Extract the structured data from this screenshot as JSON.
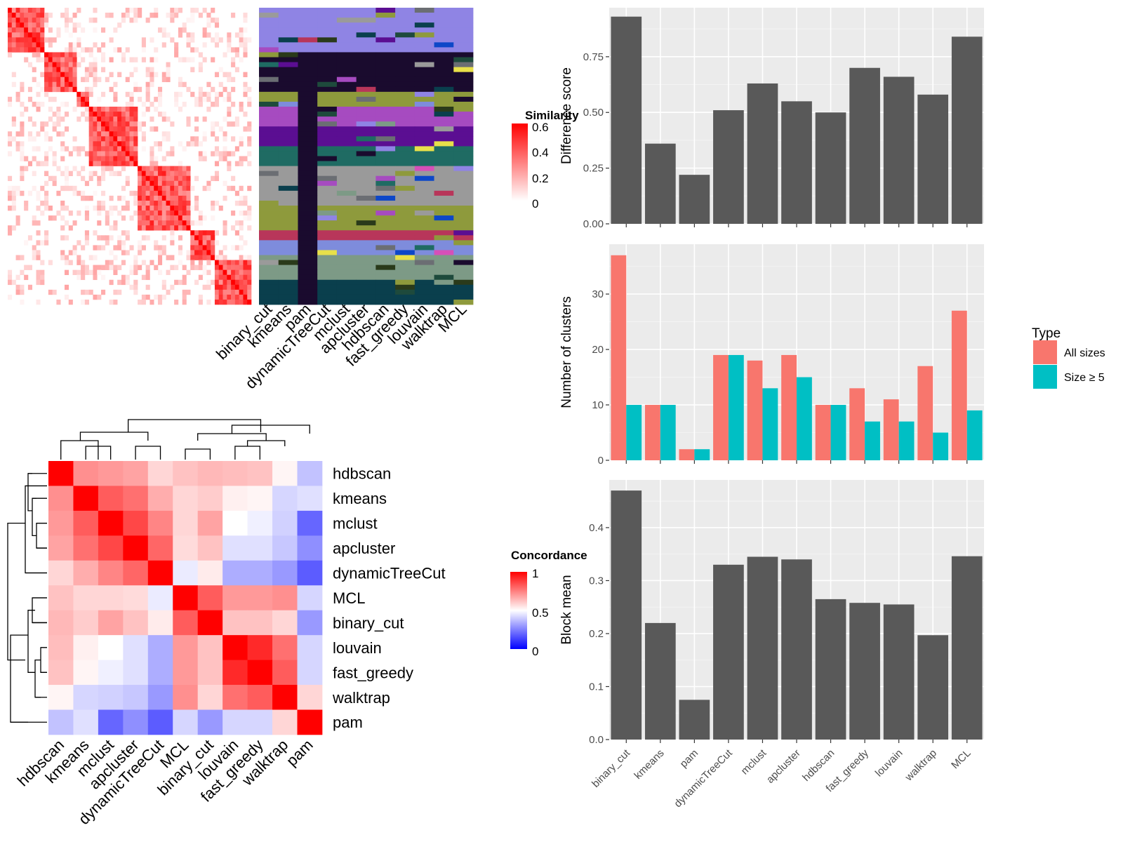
{
  "chart_data": [
    {
      "type": "heatmap",
      "legend": {
        "title": "Similarity",
        "ticks": [
          "0",
          "0.2",
          "0.4",
          "0.6"
        ]
      },
      "column_labels": [
        "binary_cut",
        "kmeans",
        "pam",
        "dynamicTreeCut",
        "mclust",
        "apcluster",
        "hdbscan",
        "fast_greedy",
        "louvain",
        "walktrap",
        "MCL"
      ],
      "palette": [
        "#8f84e4",
        "#1a0b2e",
        "#8e9a3c",
        "#a64bc0",
        "#5b0e92",
        "#1f6b63",
        "#0d47c8",
        "#9a9a9a",
        "#6b6e73",
        "#1e4a3c",
        "#7d9a86",
        "#b8365a",
        "#7e8cdc",
        "#0a3f4d",
        "#d64fb8",
        "#2a3a1a",
        "#e8e04a"
      ]
    },
    {
      "type": "heatmap",
      "legend": {
        "title": "Concordance",
        "ticks": [
          "1",
          "0.5",
          "0"
        ]
      },
      "rows": [
        "hdbscan",
        "kmeans",
        "mclust",
        "apcluster",
        "dynamicTreeCut",
        "MCL",
        "binary_cut",
        "louvain",
        "fast_greedy",
        "walktrap",
        "pam"
      ],
      "columns": [
        "hdbscan",
        "kmeans",
        "mclust",
        "apcluster",
        "dynamicTreeCut",
        "MCL",
        "binary_cut",
        "louvain",
        "fast_greedy",
        "walktrap",
        "pam"
      ],
      "values": [
        [
          1.0,
          0.72,
          0.7,
          0.68,
          0.58,
          0.62,
          0.64,
          0.63,
          0.62,
          0.52,
          0.38
        ],
        [
          0.72,
          1.0,
          0.82,
          0.78,
          0.66,
          0.58,
          0.6,
          0.53,
          0.52,
          0.42,
          0.44
        ],
        [
          0.7,
          0.82,
          1.0,
          0.86,
          0.74,
          0.58,
          0.68,
          0.5,
          0.47,
          0.41,
          0.2
        ],
        [
          0.68,
          0.78,
          0.86,
          1.0,
          0.8,
          0.57,
          0.62,
          0.44,
          0.44,
          0.39,
          0.28
        ],
        [
          0.58,
          0.66,
          0.74,
          0.8,
          1.0,
          0.46,
          0.54,
          0.34,
          0.34,
          0.3,
          0.18
        ],
        [
          0.62,
          0.58,
          0.58,
          0.57,
          0.46,
          1.0,
          0.82,
          0.7,
          0.7,
          0.72,
          0.42
        ],
        [
          0.64,
          0.6,
          0.68,
          0.62,
          0.54,
          0.82,
          1.0,
          0.62,
          0.62,
          0.58,
          0.3
        ],
        [
          0.63,
          0.53,
          0.5,
          0.44,
          0.34,
          0.7,
          0.62,
          1.0,
          0.92,
          0.78,
          0.42
        ],
        [
          0.62,
          0.52,
          0.47,
          0.44,
          0.34,
          0.7,
          0.62,
          0.92,
          1.0,
          0.82,
          0.42
        ],
        [
          0.52,
          0.42,
          0.41,
          0.39,
          0.3,
          0.72,
          0.58,
          0.78,
          0.82,
          1.0,
          0.58
        ],
        [
          0.38,
          0.44,
          0.2,
          0.28,
          0.18,
          0.42,
          0.3,
          0.42,
          0.42,
          0.58,
          1.0
        ]
      ]
    },
    {
      "type": "bar",
      "categories": [
        "binary_cut",
        "kmeans",
        "pam",
        "dynamicTreeCut",
        "mclust",
        "apcluster",
        "hdbscan",
        "fast_greedy",
        "louvain",
        "walktrap",
        "MCL"
      ],
      "values": [
        0.93,
        0.36,
        0.22,
        0.51,
        0.63,
        0.55,
        0.5,
        0.7,
        0.66,
        0.58,
        0.84
      ],
      "ylabel": "Difference score",
      "ylim": [
        0,
        0.97
      ],
      "yticks": [
        "0.00",
        "0.25",
        "0.50",
        "0.75"
      ],
      "grid": true,
      "bar_color": "#595959"
    },
    {
      "type": "bar",
      "categories": [
        "binary_cut",
        "kmeans",
        "pam",
        "dynamicTreeCut",
        "mclust",
        "apcluster",
        "hdbscan",
        "fast_greedy",
        "louvain",
        "walktrap",
        "MCL"
      ],
      "series": [
        {
          "name": "All sizes",
          "values": [
            37,
            10,
            2,
            19,
            18,
            19,
            10,
            13,
            11,
            17,
            27
          ],
          "color": "#f8766d"
        },
        {
          "name": "Size ≥ 5",
          "values": [
            10,
            10,
            2,
            19,
            13,
            15,
            10,
            7,
            7,
            5,
            9
          ],
          "color": "#00bfc4"
        }
      ],
      "ylabel": "Number of clusters",
      "ylim": [
        0,
        39
      ],
      "yticks": [
        "0",
        "10",
        "20",
        "30"
      ],
      "legend": {
        "title": "Type",
        "placement": "right"
      },
      "grid": true
    },
    {
      "type": "bar",
      "categories": [
        "binary_cut",
        "kmeans",
        "pam",
        "dynamicTreeCut",
        "mclust",
        "apcluster",
        "hdbscan",
        "fast_greedy",
        "louvain",
        "walktrap",
        "MCL"
      ],
      "values": [
        0.47,
        0.22,
        0.075,
        0.33,
        0.345,
        0.34,
        0.265,
        0.258,
        0.255,
        0.197,
        0.346
      ],
      "ylabel": "Block mean",
      "ylim": [
        0,
        0.49
      ],
      "yticks": [
        "0.0",
        "0.1",
        "0.2",
        "0.3",
        "0.4"
      ],
      "grid": true,
      "bar_color": "#595959"
    }
  ]
}
